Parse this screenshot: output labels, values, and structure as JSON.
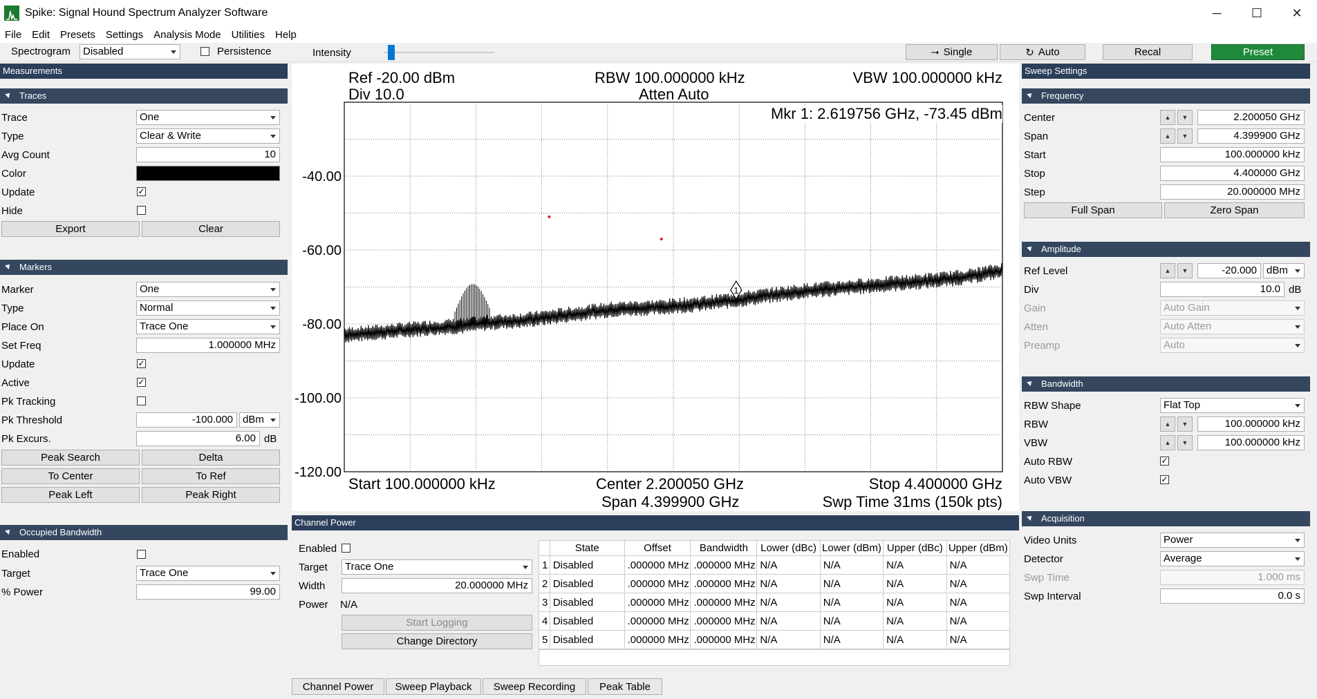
{
  "window": {
    "title": "Spike: Signal Hound Spectrum Analyzer Software",
    "min": "─",
    "max": "☐",
    "close": "✕"
  },
  "menu": [
    "File",
    "Edit",
    "Presets",
    "Settings",
    "Analysis Mode",
    "Utilities",
    "Help"
  ],
  "toolbar": {
    "spectrogram_label": "Spectrogram",
    "spectrogram_value": "Disabled",
    "persistence_label": "Persistence",
    "intensity_label": "Intensity",
    "single_label": "Single",
    "auto_label": "Auto",
    "recal_label": "Recal",
    "preset_label": "Preset",
    "preset_color": "#1e8a3a"
  },
  "measurements": {
    "title": "Measurements",
    "traces": {
      "title": "Traces",
      "trace_label": "Trace",
      "trace_value": "One",
      "type_label": "Type",
      "type_value": "Clear & Write",
      "avg_label": "Avg Count",
      "avg_value": "10",
      "color_label": "Color",
      "trace_color": "#000000",
      "update_label": "Update",
      "update_checked": "✓",
      "hide_label": "Hide",
      "export_label": "Export",
      "clear_label": "Clear"
    },
    "markers": {
      "title": "Markers",
      "marker_label": "Marker",
      "marker_value": "One",
      "type_label": "Type",
      "type_value": "Normal",
      "place_label": "Place On",
      "place_value": "Trace One",
      "setfreq_label": "Set Freq",
      "setfreq_value": "1.000000 MHz",
      "update_label": "Update",
      "update_checked": "✓",
      "active_label": "Active",
      "active_checked": "✓",
      "pktrack_label": "Pk Tracking",
      "pkthresh_label": "Pk Threshold",
      "pkthresh_value": "-100.000",
      "pkthresh_unit": "dBm",
      "pkexc_label": "Pk Excurs.",
      "pkexc_value": "6.00",
      "pkexc_unit": "dB",
      "peak_search": "Peak Search",
      "delta": "Delta",
      "to_center": "To Center",
      "to_ref": "To Ref",
      "peak_left": "Peak Left",
      "peak_right": "Peak Right"
    },
    "obw": {
      "title": "Occupied Bandwidth",
      "enabled_label": "Enabled",
      "target_label": "Target",
      "target_value": "Trace One",
      "power_label": "% Power",
      "power_value": "99.00"
    }
  },
  "graph": {
    "ref": "Ref -20.00 dBm",
    "div": "Div 10.0",
    "rbw": "RBW 100.000000 kHz",
    "atten": "Atten Auto",
    "vbw": "VBW 100.000000 kHz",
    "marker": "Mkr 1: 2.619756 GHz, -73.45 dBm",
    "start": "Start 100.000000 kHz",
    "center": "Center 2.200050 GHz",
    "span": "Span 4.399900 GHz",
    "stop": "Stop 4.400000 GHz",
    "swp": "Swp Time 31ms (150k pts)",
    "marker_num": "1"
  },
  "chart_data": {
    "type": "line",
    "title": "",
    "xlabel": "",
    "ylabel": "",
    "xlim_ghz": [
      0.0001,
      4.4
    ],
    "ylim": [
      -120,
      -20
    ],
    "y_ticks": [
      "-40.00",
      "-60.00",
      "-80.00",
      "-100.00",
      "-120.00"
    ],
    "grid": true,
    "series": [
      {
        "x": [
          0.0001,
          0.3,
          0.6,
          0.8,
          0.9,
          1.0,
          1.2,
          1.5,
          1.8,
          2.1,
          2.4,
          2.62,
          2.8,
          3.1,
          3.4,
          3.7,
          4.0,
          4.2,
          4.4
        ],
        "y": [
          -83,
          -82,
          -81,
          -80.5,
          -80,
          -79.5,
          -79,
          -77.5,
          -76,
          -75.5,
          -74.5,
          -73.45,
          -72.5,
          -71,
          -70,
          -69,
          -68,
          -67,
          -65.5
        ]
      }
    ],
    "spurs": [
      {
        "x": 0.85,
        "y": -71
      },
      {
        "x": 0.88,
        "y": -72
      },
      {
        "x": 0.91,
        "y": -71.5
      }
    ],
    "red_dots": [
      {
        "x": 1.37,
        "y": -51
      },
      {
        "x": 2.12,
        "y": -57
      }
    ],
    "trace_color": "#000000"
  },
  "channel_power": {
    "title": "Channel Power",
    "enabled_label": "Enabled",
    "target_label": "Target",
    "target_value": "Trace One",
    "width_label": "Width",
    "width_value": "20.000000 MHz",
    "power_label": "Power",
    "power_value": "N/A",
    "start_logging": "Start Logging",
    "change_dir": "Change Directory",
    "columns": [
      "State",
      "Offset",
      "Bandwidth",
      "Lower (dBc)",
      "Lower (dBm)",
      "Upper (dBc)",
      "Upper (dBm)"
    ],
    "rows": [
      {
        "n": "1",
        "state": "Disabled",
        "offset": ".000000 MHz",
        "bw": ".000000 MHz",
        "ldbc": "N/A",
        "ldbm": "N/A",
        "udbc": "N/A",
        "udbm": "N/A"
      },
      {
        "n": "2",
        "state": "Disabled",
        "offset": ".000000 MHz",
        "bw": ".000000 MHz",
        "ldbc": "N/A",
        "ldbm": "N/A",
        "udbc": "N/A",
        "udbm": "N/A"
      },
      {
        "n": "3",
        "state": "Disabled",
        "offset": ".000000 MHz",
        "bw": ".000000 MHz",
        "ldbc": "N/A",
        "ldbm": "N/A",
        "udbc": "N/A",
        "udbm": "N/A"
      },
      {
        "n": "4",
        "state": "Disabled",
        "offset": ".000000 MHz",
        "bw": ".000000 MHz",
        "ldbc": "N/A",
        "ldbm": "N/A",
        "udbc": "N/A",
        "udbm": "N/A"
      },
      {
        "n": "5",
        "state": "Disabled",
        "offset": ".000000 MHz",
        "bw": ".000000 MHz",
        "ldbc": "N/A",
        "ldbm": "N/A",
        "udbc": "N/A",
        "udbm": "N/A"
      }
    ]
  },
  "tabs": [
    "Channel Power",
    "Sweep Playback",
    "Sweep Recording",
    "Peak Table"
  ],
  "sweep": {
    "title": "Sweep Settings",
    "frequency": {
      "title": "Frequency",
      "center_label": "Center",
      "center_value": "2.200050 GHz",
      "span_label": "Span",
      "span_value": "4.399900 GHz",
      "start_label": "Start",
      "start_value": "100.000000 kHz",
      "stop_label": "Stop",
      "stop_value": "4.400000 GHz",
      "step_label": "Step",
      "step_value": "20.000000 MHz",
      "full_span": "Full Span",
      "zero_span": "Zero Span"
    },
    "amplitude": {
      "title": "Amplitude",
      "ref_label": "Ref Level",
      "ref_value": "-20.000",
      "ref_unit": "dBm",
      "div_label": "Div",
      "div_value": "10.0",
      "div_unit": "dB",
      "gain_label": "Gain",
      "gain_value": "Auto Gain",
      "atten_label": "Atten",
      "atten_value": "Auto Atten",
      "preamp_label": "Preamp",
      "preamp_value": "Auto"
    },
    "bandwidth": {
      "title": "Bandwidth",
      "shape_label": "RBW Shape",
      "shape_value": "Flat Top",
      "rbw_label": "RBW",
      "rbw_value": "100.000000 kHz",
      "vbw_label": "VBW",
      "vbw_value": "100.000000 kHz",
      "autorbw_label": "Auto RBW",
      "autovbw_label": "Auto VBW",
      "checked": "✓"
    },
    "acquisition": {
      "title": "Acquisition",
      "video_label": "Video Units",
      "video_value": "Power",
      "det_label": "Detector",
      "det_value": "Average",
      "swptime_label": "Swp Time",
      "swptime_value": "1.000 ms",
      "swpint_label": "Swp Interval",
      "swpint_value": "0.0 s"
    }
  }
}
